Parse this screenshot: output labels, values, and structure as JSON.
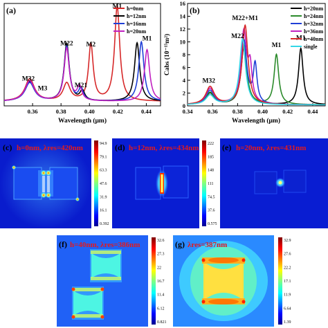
{
  "chart_data": [
    {
      "panel": "(a)",
      "type": "line",
      "xlabel": "Wavelength (μm)",
      "ylabel": "",
      "xlim": [
        0.34,
        0.45
      ],
      "ylim": [
        0,
        1.05
      ],
      "xticks": [
        "0.36",
        "0.38",
        "0.40",
        "0.42",
        "0.44"
      ],
      "legend_position": "top-right",
      "series": [
        {
          "name": "h=0nm",
          "color": "#d62728",
          "peaks": [
            [
              0.358,
              0.23,
              0.004
            ],
            [
              0.384,
              0.18,
              0.003
            ],
            [
              0.401,
              0.58,
              0.002
            ],
            [
              0.4195,
              0.97,
              0.0022
            ]
          ]
        },
        {
          "name": "h=12nm",
          "color": "#000000",
          "peaks": [
            [
              0.358,
              0.2,
              0.004
            ],
            [
              0.384,
              0.59,
              0.0022
            ],
            [
              0.395,
              0.1,
              0.002
            ],
            [
              0.4335,
              0.6,
              0.0022
            ]
          ]
        },
        {
          "name": "h=16nm",
          "color": "#1f3fd6",
          "peaks": [
            [
              0.358,
              0.19,
              0.004
            ],
            [
              0.384,
              0.56,
              0.0022
            ],
            [
              0.394,
              0.12,
              0.002
            ],
            [
              0.4365,
              0.61,
              0.0022
            ]
          ]
        },
        {
          "name": "h=20nm",
          "color": "#c020c0",
          "peaks": [
            [
              0.358,
              0.21,
              0.004
            ],
            [
              0.384,
              0.54,
              0.0022
            ],
            [
              0.393,
              0.14,
              0.002
            ],
            [
              0.4405,
              0.53,
              0.0022
            ]
          ]
        }
      ],
      "annotations": [
        {
          "label": "M1",
          "x": 0.4195,
          "y": 1.0
        },
        {
          "label": "M2",
          "x": 0.401,
          "y": 0.61
        },
        {
          "label": "M22",
          "x": 0.384,
          "y": 0.62
        },
        {
          "label": "M1",
          "x": 0.4405,
          "y": 0.67
        },
        {
          "label": "M21",
          "x": 0.394,
          "y": 0.19
        },
        {
          "label": "M32",
          "x": 0.357,
          "y": 0.26
        },
        {
          "label": "M3",
          "x": 0.367,
          "y": 0.16
        }
      ]
    },
    {
      "panel": "(b)",
      "type": "line",
      "xlabel": "Wavelength (μm)",
      "ylabel": "Cabs (10⁻¹⁵m²)",
      "xlim": [
        0.34,
        0.45
      ],
      "ylim": [
        0,
        16
      ],
      "xticks": [
        "0.34",
        "0.36",
        "0.38",
        "0.40",
        "0.42",
        "0.44"
      ],
      "yticks": [
        "0",
        "2",
        "4",
        "6",
        "8",
        "10",
        "12",
        "14",
        "16"
      ],
      "legend_position": "top-right",
      "series": [
        {
          "name": "h=20nm",
          "color": "#000000",
          "peaks": [
            [
              0.358,
              1.8,
              0.004
            ],
            [
              0.385,
              9.0,
              0.0028
            ],
            [
              0.4305,
              8.8,
              0.0022
            ]
          ]
        },
        {
          "name": "h=24nm",
          "color": "#2a8a2a",
          "peaks": [
            [
              0.358,
              1.9,
              0.004
            ],
            [
              0.385,
              9.3,
              0.0028
            ],
            [
              0.411,
              7.8,
              0.0022
            ]
          ]
        },
        {
          "name": "h=32nm",
          "color": "#1f3fd6",
          "peaks": [
            [
              0.358,
              2.2,
              0.004
            ],
            [
              0.385,
              10.0,
              0.0028
            ],
            [
              0.394,
              6.0,
              0.0018
            ]
          ]
        },
        {
          "name": "h=36nm",
          "color": "#c020c0",
          "peaks": [
            [
              0.358,
              2.5,
              0.004
            ],
            [
              0.385,
              11.3,
              0.0028
            ],
            [
              0.39,
              5.0,
              0.0018
            ]
          ]
        },
        {
          "name": "h=40nm",
          "color": "#d62728",
          "peaks": [
            [
              0.358,
              2.8,
              0.004
            ],
            [
              0.386,
              12.4,
              0.0028
            ]
          ]
        },
        {
          "name": "single",
          "color": "#33d6e6",
          "peaks": [
            [
              0.358,
              1.5,
              0.004
            ],
            [
              0.384,
              10.3,
              0.0028
            ]
          ]
        }
      ],
      "annotations": [
        {
          "label": "M22+M1",
          "x": 0.386,
          "y": 13.4
        },
        {
          "label": "M22",
          "x": 0.38,
          "y": 10.6
        },
        {
          "label": "M1",
          "x": 0.411,
          "y": 9.2
        },
        {
          "label": "M1",
          "x": 0.4305,
          "y": 10.3
        },
        {
          "label": "M32",
          "x": 0.357,
          "y": 3.6
        }
      ]
    },
    {
      "panel": "(c)",
      "type": "heatmap",
      "title": "h=0nm, λres=420nm",
      "colorbar_ticks": [
        "94.9",
        "79.1",
        "63.3",
        "47.6",
        "31.9",
        "16.1",
        "0.392"
      ]
    },
    {
      "panel": "(d)",
      "type": "heatmap",
      "title": "h=12nm, λres=434nm",
      "colorbar_ticks": [
        "222",
        "185",
        "148",
        "111",
        "74.5",
        "37.6",
        "0.575"
      ]
    },
    {
      "panel": "(e)",
      "type": "heatmap",
      "title": "h=20nm, λres=431nm",
      "colorbar_ticks": [
        "",
        "",
        "",
        "",
        "",
        "",
        ""
      ]
    },
    {
      "panel": "(f)",
      "type": "heatmap",
      "title": "h=40nm, λres=386nm",
      "colorbar_ticks": [
        "32.6",
        "27.3",
        "22",
        "16.7",
        "11.4",
        "6.12",
        "0.821"
      ]
    },
    {
      "panel": "(g)",
      "type": "heatmap",
      "title": "λres=387nm",
      "colorbar_ticks": [
        "32.9",
        "27.6",
        "22.2",
        "17.1",
        "11.9",
        "6.64",
        "1.39"
      ]
    }
  ]
}
